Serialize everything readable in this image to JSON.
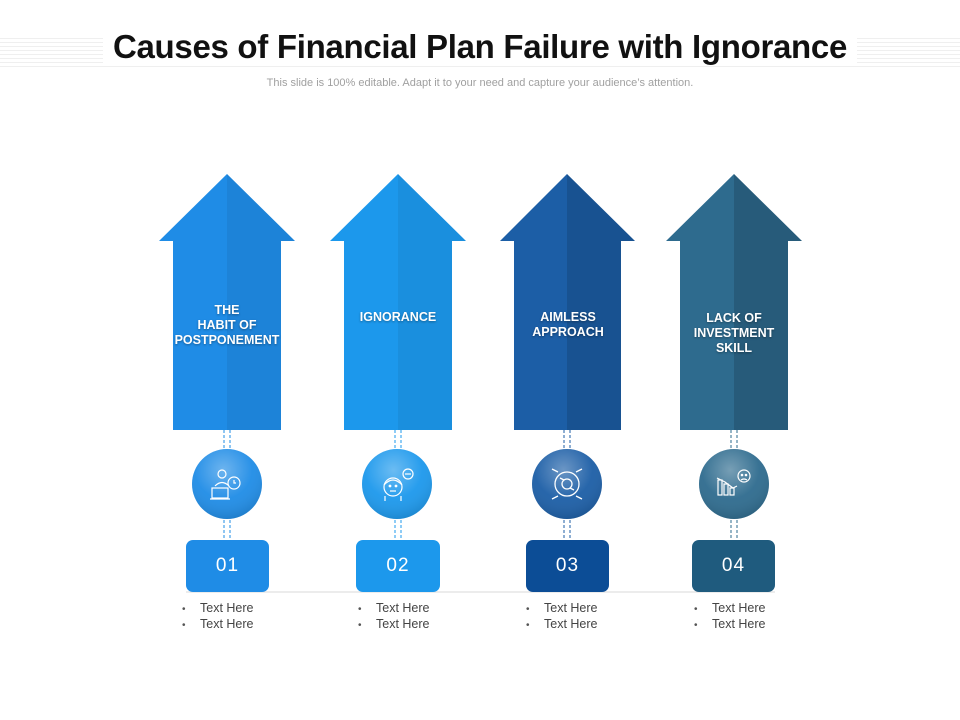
{
  "header": {
    "title": "Causes of Financial Plan Failure with Ignorance",
    "subtitle": "This slide is 100% editable. Adapt it to your need and capture your audience’s attention."
  },
  "causes": [
    {
      "label": "THE\nHABIT OF\nPOSTPONEMENT",
      "number": "01",
      "icon": "procrastination-laptop-clock-icon",
      "color": "#1f8ce6",
      "color_dark": "#147fde",
      "bullets": [
        "Text Here",
        "Text Here"
      ]
    },
    {
      "label": "IGNORANCE",
      "number": "02",
      "icon": "ignorance-face-icon",
      "color": "#1c98ec",
      "color_dark": "#1089e6",
      "bullets": [
        "Text Here",
        "Text Here"
      ]
    },
    {
      "label": "AIMLESS\nAPPROACH",
      "number": "03",
      "icon": "cycle-arrows-icon",
      "color": "#1c5ea6",
      "color_dark": "#0c4d96",
      "bullets": [
        "Text Here",
        "Text Here"
      ]
    },
    {
      "label": "LACK OF\nINVESTMENT\nSKILL",
      "number": "04",
      "icon": "declining-chart-sad-icon",
      "color": "#2e6b8e",
      "color_dark": "#1f5b7e",
      "bullets": [
        "Text Here",
        "Text Here"
      ]
    }
  ]
}
